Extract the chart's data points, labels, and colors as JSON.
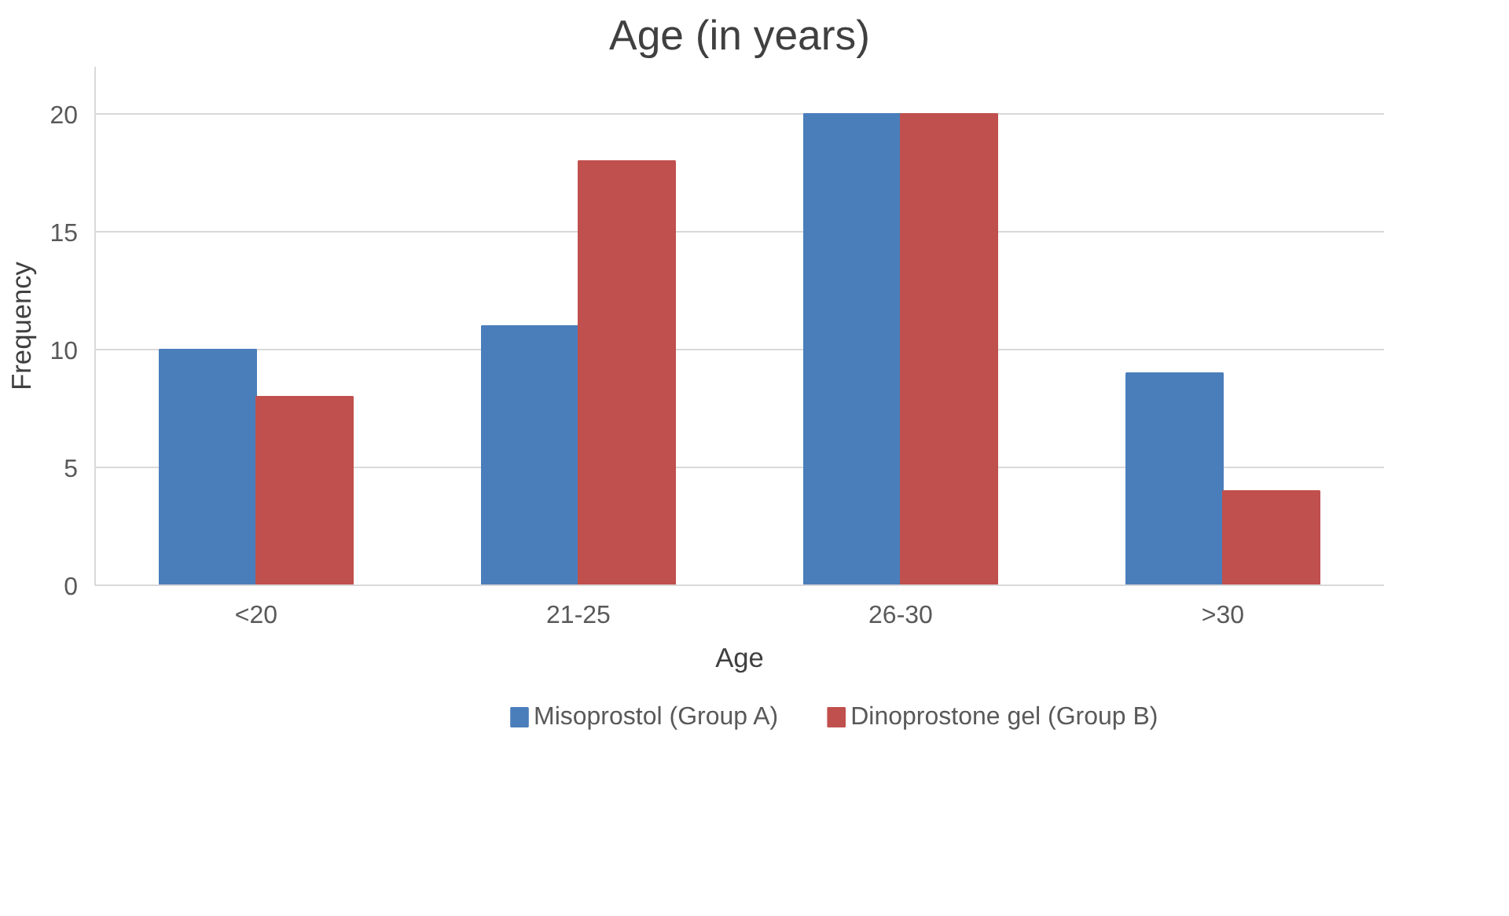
{
  "chart_data": {
    "type": "bar",
    "title": "Age (in years)",
    "xlabel": "Age",
    "ylabel": "Frequency",
    "categories": [
      "<20",
      "21-25",
      "26-30",
      ">30"
    ],
    "series": [
      {
        "name": "Misoprostol (Group A)",
        "color": "#4a7ebb",
        "values": [
          10,
          11,
          20,
          9
        ]
      },
      {
        "name": "Dinoprostone gel (Group B)",
        "color": "#c0504d",
        "values": [
          8,
          18,
          20,
          4
        ]
      }
    ],
    "ylim": [
      0,
      22
    ],
    "yticks": [
      0,
      5,
      10,
      15,
      20
    ],
    "grid": "y",
    "legend": "bottom"
  }
}
